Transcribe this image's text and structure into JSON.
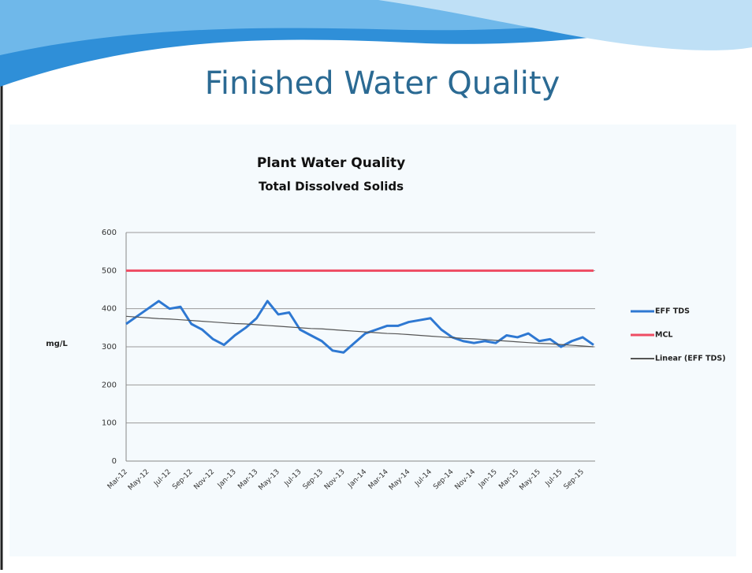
{
  "slide": {
    "title": "Finished Water Quality"
  },
  "chart_data": {
    "type": "line",
    "title": "Plant Water Quality",
    "subtitle": "Total Dissolved Solids",
    "y_label": "mg/L",
    "categories": [
      "Mar-12",
      null,
      "May-12",
      null,
      "Jul-12",
      null,
      "Sep-12",
      null,
      "Nov-12",
      null,
      "Jan-13",
      null,
      "Mar-13",
      null,
      "May-13",
      null,
      "Jul-13",
      null,
      "Sep-13",
      null,
      "Nov-13",
      null,
      "Jan-14",
      null,
      "Mar-14",
      null,
      "May-14",
      null,
      "Jul-14",
      null,
      "Sep-14",
      null,
      "Nov-14",
      null,
      "Jan-15",
      null,
      "Mar-15",
      null,
      "May-15",
      null,
      "Jul-15",
      null,
      "Sep-15",
      null
    ],
    "series": [
      {
        "name": "EFF TDS",
        "color": "#2e78d2",
        "width": 3,
        "values": [
          360,
          380,
          400,
          420,
          400,
          405,
          360,
          345,
          320,
          305,
          330,
          350,
          375,
          420,
          385,
          390,
          345,
          330,
          315,
          290,
          285,
          310,
          335,
          345,
          355,
          355,
          365,
          370,
          375,
          345,
          325,
          315,
          310,
          315,
          310,
          330,
          325,
          335,
          315,
          320,
          300,
          315,
          325,
          305
        ]
      },
      {
        "name": "MCL",
        "color": "#ee4c63",
        "width": 3,
        "values": [
          500,
          500,
          500,
          500,
          500,
          500,
          500,
          500,
          500,
          500,
          500,
          500,
          500,
          500,
          500,
          500,
          500,
          500,
          500,
          500,
          500,
          500,
          500,
          500,
          500,
          500,
          500,
          500,
          500,
          500,
          500,
          500,
          500,
          500,
          500,
          500,
          500,
          500,
          500,
          500,
          500,
          500,
          500,
          500
        ]
      },
      {
        "name": "Linear (EFF TDS)",
        "color": "#555555",
        "width": 1.2,
        "values": [
          380,
          378,
          376,
          374,
          373,
          371,
          369,
          367,
          365,
          363,
          361,
          360,
          358,
          356,
          354,
          352,
          350,
          348,
          347,
          345,
          343,
          341,
          339,
          337,
          335,
          334,
          332,
          330,
          328,
          326,
          324,
          322,
          321,
          319,
          317,
          315,
          313,
          311,
          309,
          308,
          306,
          304,
          302,
          300
        ]
      }
    ],
    "ylim": [
      0,
      600
    ],
    "yticks": [
      0,
      100,
      200,
      300,
      400,
      500,
      600
    ],
    "grid": true,
    "legend": "right"
  }
}
